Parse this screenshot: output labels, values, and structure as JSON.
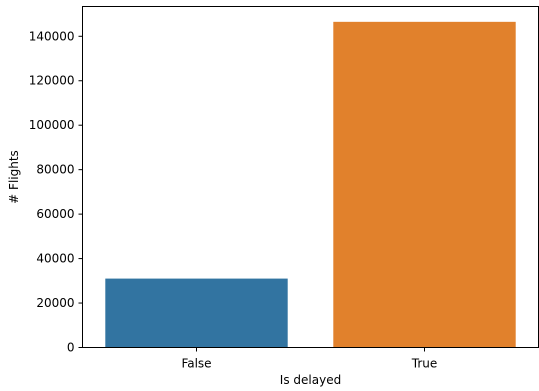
{
  "chart_data": {
    "type": "bar",
    "title": "",
    "xlabel": "Is delayed",
    "ylabel": "# Flights",
    "categories": [
      "False",
      "True"
    ],
    "values": [
      31000,
      146500
    ],
    "colors": [
      "#3274a1",
      "#e1812c"
    ],
    "ylim": [
      0,
      153400
    ],
    "yticks": [
      0,
      20000,
      40000,
      60000,
      80000,
      100000,
      120000,
      140000
    ],
    "ytick_labels": [
      "0",
      "20000",
      "40000",
      "60000",
      "80000",
      "100000",
      "120000",
      "140000"
    ],
    "grid": false,
    "legend": "none"
  }
}
